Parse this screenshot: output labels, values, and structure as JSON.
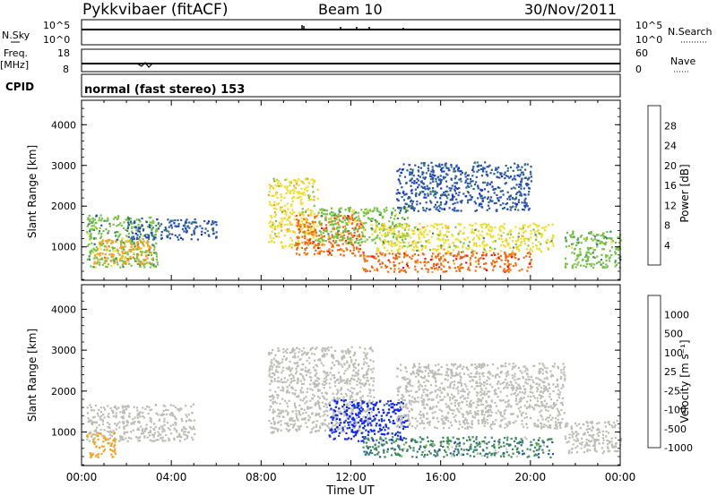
{
  "header": {
    "station": "Pykkvibaer (fitACF)",
    "beam": "Beam 10",
    "date": "30/Nov/2011"
  },
  "top_panels": {
    "nsky_label": "N.Sky",
    "nsky_ticks": [
      "10^5",
      "10^0"
    ],
    "nsearch_label": "N.Search",
    "nsearch_ticks": [
      "10^5",
      "10^0"
    ],
    "freq_label": "Freq.",
    "freq_unit": "[MHz]",
    "freq_ticks": [
      "18",
      "8"
    ],
    "nave_label": "Nave",
    "nave_ticks": [
      "60",
      "0"
    ],
    "cpid_label": "CPID",
    "cpid_value": "normal (fast stereo) 153"
  },
  "colors": {
    "power_scale": [
      "#1028e8",
      "#2a56a8",
      "#3c8a5a",
      "#74c243",
      "#f2dc2a",
      "#f6a224",
      "#f46a12",
      "#ee1410"
    ],
    "velocity_scale": [
      "#1028e8",
      "#2a56a8",
      "#3c8a5a",
      "#74c243",
      "#c4c4c4",
      "#f6a224",
      "#f46a12",
      "#ee1410"
    ],
    "ground_scatter": "#bdbdb6"
  },
  "chart_data": [
    {
      "type": "heatmap",
      "title": "Power",
      "ylabel": "Slant Range [km]",
      "colorbar_label": "Power [dB]",
      "colorbar_ticks": [
        "28",
        "24",
        "20",
        "16",
        "12",
        "8",
        "4"
      ],
      "ylim": [
        180,
        4600
      ],
      "yticks": [
        "4000",
        "3000",
        "2000",
        "1000"
      ],
      "xlim_hours": [
        0,
        24
      ],
      "xticks": [
        "00:00",
        "04:00",
        "08:00",
        "12:00",
        "16:00",
        "20:00",
        "00:00"
      ],
      "regions": [
        {
          "t": [
            0.2,
            3.4
          ],
          "r": [
            500,
            1800
          ],
          "value": 12
        },
        {
          "t": [
            0.5,
            3.2
          ],
          "r": [
            600,
            1200
          ],
          "value": 22
        },
        {
          "t": [
            2.0,
            6.0
          ],
          "r": [
            1200,
            1700
          ],
          "value": 6
        },
        {
          "t": [
            8.3,
            10.5
          ],
          "r": [
            1000,
            2700
          ],
          "value": 18
        },
        {
          "t": [
            9.5,
            12.5
          ],
          "r": [
            800,
            1800
          ],
          "value": 26
        },
        {
          "t": [
            10.5,
            14.5
          ],
          "r": [
            1100,
            2000
          ],
          "value": 14
        },
        {
          "t": [
            12.5,
            20.0
          ],
          "r": [
            400,
            900
          ],
          "value": 26
        },
        {
          "t": [
            13.0,
            21.0
          ],
          "r": [
            900,
            1600
          ],
          "value": 16
        },
        {
          "t": [
            14.0,
            20.0
          ],
          "r": [
            1900,
            3100
          ],
          "value": 6
        },
        {
          "t": [
            21.5,
            24.0
          ],
          "r": [
            500,
            1400
          ],
          "value": 12
        }
      ]
    },
    {
      "type": "heatmap",
      "title": "Velocity",
      "ylabel": "Slant Range [km]",
      "colorbar_label": "Velocity [m s⁻¹]",
      "colorbar_ticks": [
        "1000",
        "500",
        "100",
        "25",
        "-25",
        "-100",
        "-500",
        "-1000"
      ],
      "ylim": [
        180,
        4600
      ],
      "yticks": [
        "4000",
        "3000",
        "2000",
        "1000"
      ],
      "xlim_hours": [
        0,
        24
      ],
      "xticks": [
        "00:00",
        "04:00",
        "08:00",
        "12:00",
        "16:00",
        "20:00",
        "00:00"
      ],
      "xlabel": "Time UT",
      "regions": [
        {
          "t": [
            0.2,
            5.0
          ],
          "r": [
            800,
            1700
          ],
          "value": 0,
          "ground_scatter": true
        },
        {
          "t": [
            0.2,
            1.5
          ],
          "r": [
            400,
            1000
          ],
          "value": -150
        },
        {
          "t": [
            8.3,
            13.0
          ],
          "r": [
            1000,
            3100
          ],
          "value": 0,
          "ground_scatter": true
        },
        {
          "t": [
            11.0,
            14.5
          ],
          "r": [
            800,
            1800
          ],
          "value": 600
        },
        {
          "t": [
            12.5,
            21.0
          ],
          "r": [
            400,
            900
          ],
          "value": 80
        },
        {
          "t": [
            14.0,
            21.5
          ],
          "r": [
            1100,
            2700
          ],
          "value": 0,
          "ground_scatter": true
        },
        {
          "t": [
            21.5,
            24.0
          ],
          "r": [
            500,
            1300
          ],
          "value": 0,
          "ground_scatter": true
        }
      ]
    }
  ]
}
